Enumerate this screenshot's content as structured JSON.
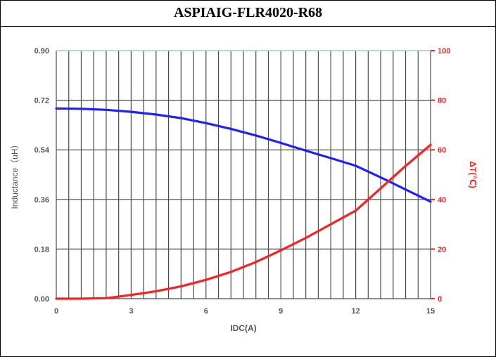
{
  "title": "ASPIAIG-FLR4020-R68",
  "colors": {
    "inductance": "#1f1fff",
    "temperature": "#ff1f1f",
    "tick_text": "#555555",
    "grid": "#4a4a4a",
    "grid_top": "#9fc3e0"
  },
  "chart_data": {
    "type": "line",
    "xlabel": "IDC(A)",
    "ylabel": "Inductance（uH）",
    "y2label": "ΔT(℃)",
    "xlim": [
      0,
      15
    ],
    "xticks": [
      "0",
      "3",
      "6",
      "9",
      "12",
      "15"
    ],
    "x_grid_step": 0.5,
    "ylim": [
      0,
      0.9
    ],
    "yticks": [
      "0.00",
      "0.18",
      "0.36",
      "0.54",
      "0.72",
      "0.90"
    ],
    "y2lim": [
      0,
      100
    ],
    "y2ticks": [
      "0",
      "20",
      "40",
      "60",
      "80",
      "100"
    ],
    "grid": true,
    "series": [
      {
        "axis": "left",
        "color_key": "inductance",
        "x": [
          0,
          1,
          2,
          3,
          4,
          5,
          6,
          7,
          8,
          9,
          10,
          11,
          12,
          13,
          14,
          15
        ],
        "values": [
          0.69,
          0.689,
          0.685,
          0.678,
          0.668,
          0.655,
          0.637,
          0.616,
          0.592,
          0.565,
          0.537,
          0.51,
          0.482,
          0.44,
          0.396,
          0.352
        ]
      },
      {
        "axis": "right",
        "color_key": "temperature",
        "x": [
          0,
          1,
          2,
          3,
          4,
          5,
          6,
          7,
          8,
          9,
          10,
          11,
          12,
          13,
          14,
          15
        ],
        "values": [
          0,
          0,
          0.2,
          1.5,
          3,
          5,
          7.6,
          10.8,
          14.8,
          19.5,
          24.5,
          30,
          35.5,
          44.5,
          53.5,
          62
        ]
      }
    ]
  }
}
